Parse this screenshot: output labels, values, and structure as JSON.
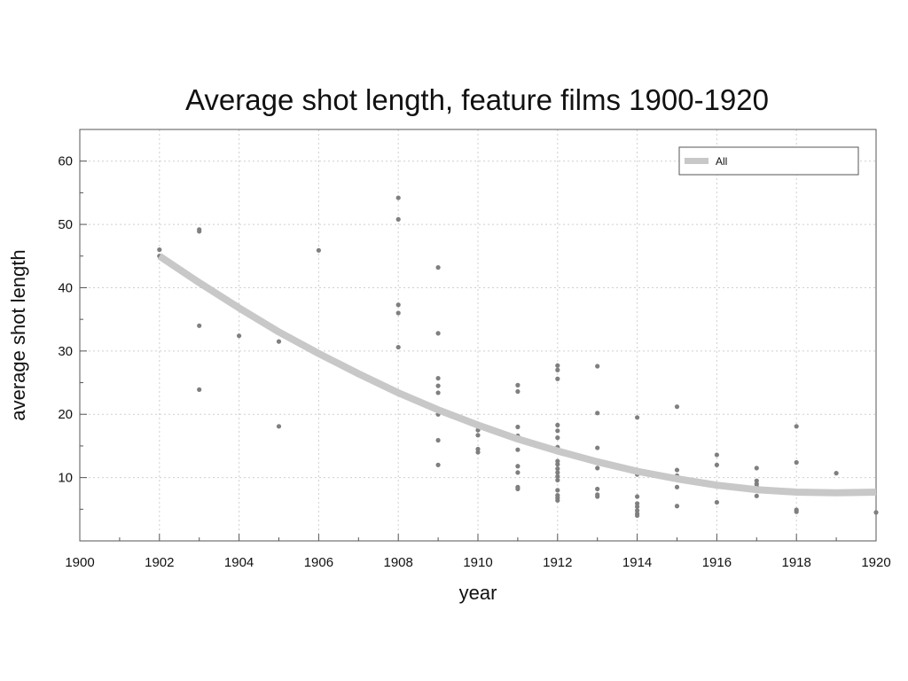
{
  "chart_data": {
    "type": "scatter",
    "title": "Average shot length, feature films 1900-1920",
    "xlabel": "year",
    "ylabel": "average shot length",
    "xlim": [
      1900,
      1920
    ],
    "ylim": [
      0,
      65
    ],
    "x_ticks": [
      1900,
      1902,
      1904,
      1906,
      1908,
      1910,
      1912,
      1914,
      1916,
      1918,
      1920
    ],
    "y_ticks": [
      10,
      20,
      30,
      40,
      50,
      60
    ],
    "grid": true,
    "legend_position": "top-right",
    "colors": {
      "points": "#7f7f7f",
      "trend": "#c8c8c8",
      "grid": "#cfcfcf",
      "axis": "#555555"
    },
    "series": [
      {
        "type": "scatter",
        "points": [
          [
            1902,
            46.0
          ],
          [
            1902,
            45.0
          ],
          [
            1903,
            49.2
          ],
          [
            1903,
            48.9
          ],
          [
            1903,
            34.0
          ],
          [
            1903,
            23.9
          ],
          [
            1904,
            32.4
          ],
          [
            1905,
            31.5
          ],
          [
            1905,
            18.1
          ],
          [
            1906,
            45.9
          ],
          [
            1908,
            54.2
          ],
          [
            1908,
            50.8
          ],
          [
            1908,
            37.3
          ],
          [
            1908,
            36.0
          ],
          [
            1908,
            30.6
          ],
          [
            1909,
            43.2
          ],
          [
            1909,
            32.8
          ],
          [
            1909,
            25.7
          ],
          [
            1909,
            24.5
          ],
          [
            1909,
            23.4
          ],
          [
            1909,
            20.0
          ],
          [
            1909,
            15.9
          ],
          [
            1909,
            12.0
          ],
          [
            1910,
            17.5
          ],
          [
            1910,
            16.7
          ],
          [
            1910,
            14.5
          ],
          [
            1910,
            14.0
          ],
          [
            1911,
            24.6
          ],
          [
            1911,
            23.6
          ],
          [
            1911,
            18.0
          ],
          [
            1911,
            16.6
          ],
          [
            1911,
            16.4
          ],
          [
            1911,
            14.4
          ],
          [
            1911,
            11.8
          ],
          [
            1911,
            10.8
          ],
          [
            1911,
            8.5
          ],
          [
            1911,
            8.2
          ],
          [
            1912,
            27.7
          ],
          [
            1912,
            27.0
          ],
          [
            1912,
            25.6
          ],
          [
            1912,
            18.3
          ],
          [
            1912,
            17.4
          ],
          [
            1912,
            16.3
          ],
          [
            1912,
            14.8
          ],
          [
            1912,
            12.6
          ],
          [
            1912,
            12.1
          ],
          [
            1912,
            11.4
          ],
          [
            1912,
            10.8
          ],
          [
            1912,
            10.2
          ],
          [
            1912,
            9.6
          ],
          [
            1912,
            8.0
          ],
          [
            1912,
            7.2
          ],
          [
            1912,
            6.8
          ],
          [
            1912,
            6.4
          ],
          [
            1913,
            27.6
          ],
          [
            1913,
            20.2
          ],
          [
            1913,
            14.7
          ],
          [
            1913,
            11.5
          ],
          [
            1913,
            8.2
          ],
          [
            1913,
            7.3
          ],
          [
            1913,
            7.0
          ],
          [
            1914,
            19.5
          ],
          [
            1914,
            10.5
          ],
          [
            1914,
            7.0
          ],
          [
            1914,
            5.9
          ],
          [
            1914,
            5.4
          ],
          [
            1914,
            4.8
          ],
          [
            1914,
            4.3
          ],
          [
            1914,
            4.0
          ],
          [
            1915,
            21.2
          ],
          [
            1915,
            11.2
          ],
          [
            1915,
            10.3
          ],
          [
            1915,
            9.8
          ],
          [
            1915,
            8.5
          ],
          [
            1915,
            5.5
          ],
          [
            1916,
            13.6
          ],
          [
            1916,
            12.0
          ],
          [
            1916,
            6.1
          ],
          [
            1917,
            11.5
          ],
          [
            1917,
            9.5
          ],
          [
            1917,
            9.0
          ],
          [
            1917,
            8.6
          ],
          [
            1917,
            7.1
          ],
          [
            1918,
            18.1
          ],
          [
            1918,
            12.4
          ],
          [
            1918,
            4.9
          ],
          [
            1918,
            4.6
          ],
          [
            1919,
            10.7
          ],
          [
            1919,
            7.5
          ],
          [
            1920,
            4.5
          ]
        ]
      },
      {
        "name": "All",
        "type": "line",
        "x": [
          1902,
          1903,
          1904,
          1905,
          1906,
          1907,
          1908,
          1909,
          1910,
          1911,
          1912,
          1913,
          1914,
          1915,
          1916,
          1917,
          1918,
          1919,
          1920
        ],
        "y": [
          45.0,
          40.8,
          36.8,
          33.0,
          29.6,
          26.4,
          23.4,
          20.7,
          18.3,
          16.1,
          14.2,
          12.5,
          11.0,
          9.8,
          8.8,
          8.1,
          7.7,
          7.6,
          7.7
        ]
      }
    ]
  }
}
